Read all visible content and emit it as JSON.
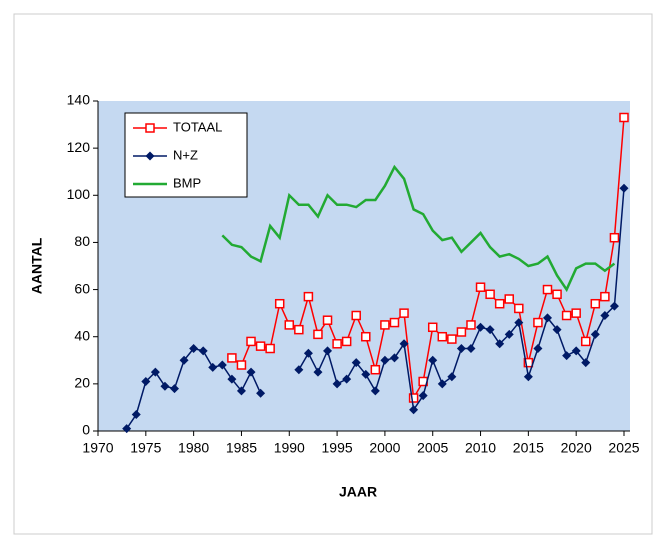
{
  "chart_data": {
    "type": "line",
    "x": [
      1973,
      1974,
      1975,
      1976,
      1977,
      1978,
      1979,
      1980,
      1981,
      1982,
      1983,
      1984,
      1985,
      1986,
      1987,
      1988,
      1989,
      1990,
      1991,
      1992,
      1993,
      1994,
      1995,
      1996,
      1997,
      1998,
      1999,
      2000,
      2001,
      2002,
      2003,
      2004,
      2005,
      2006,
      2007,
      2008,
      2009,
      2010,
      2011,
      2012,
      2013,
      2014,
      2015,
      2016,
      2017,
      2018,
      2019,
      2020,
      2021,
      2022,
      2023,
      2024,
      2025
    ],
    "series": [
      {
        "name": "TOTAAL",
        "color": "#ff0000",
        "marker": "square",
        "values": [
          null,
          null,
          null,
          null,
          null,
          null,
          null,
          null,
          null,
          null,
          null,
          31,
          28,
          38,
          36,
          35,
          54,
          45,
          43,
          57,
          41,
          47,
          37,
          38,
          49,
          40,
          26,
          45,
          46,
          50,
          14,
          21,
          44,
          40,
          39,
          42,
          45,
          61,
          58,
          54,
          56,
          52,
          29,
          46,
          60,
          58,
          49,
          50,
          38,
          54,
          57,
          82,
          133
        ]
      },
      {
        "name": "N+Z",
        "color": "#001a66",
        "marker": "diamond",
        "values": [
          1,
          7,
          21,
          25,
          19,
          18,
          30,
          35,
          34,
          27,
          28,
          22,
          17,
          25,
          16,
          null,
          null,
          null,
          26,
          33,
          25,
          34,
          20,
          22,
          29,
          24,
          17,
          30,
          31,
          37,
          9,
          15,
          30,
          20,
          23,
          35,
          35,
          44,
          43,
          37,
          41,
          46,
          23,
          35,
          48,
          43,
          32,
          34,
          29,
          41,
          49,
          53,
          103
        ]
      },
      {
        "name": "BMP",
        "color": "#22aa33",
        "marker": "none",
        "values": [
          null,
          null,
          null,
          null,
          null,
          null,
          null,
          null,
          null,
          null,
          83,
          79,
          78,
          74,
          72,
          87,
          82,
          100,
          96,
          96,
          91,
          100,
          96,
          96,
          95,
          98,
          98,
          104,
          112,
          107,
          94,
          92,
          85,
          81,
          82,
          76,
          80,
          84,
          78,
          74,
          75,
          73,
          70,
          71,
          74,
          66,
          60,
          69,
          71,
          71,
          68,
          71,
          null
        ]
      }
    ],
    "xlabel": "JAAR",
    "ylabel": "AANTAL",
    "xlim": [
      1970,
      2025
    ],
    "xticks": [
      1970,
      1975,
      1980,
      1985,
      1990,
      1995,
      2000,
      2005,
      2010,
      2015,
      2020,
      2025
    ],
    "ylim": [
      0,
      140
    ],
    "yticks": [
      0,
      20,
      40,
      60,
      80,
      100,
      120,
      140
    ],
    "legend": "upper-left",
    "background": "#c5d9f1"
  }
}
